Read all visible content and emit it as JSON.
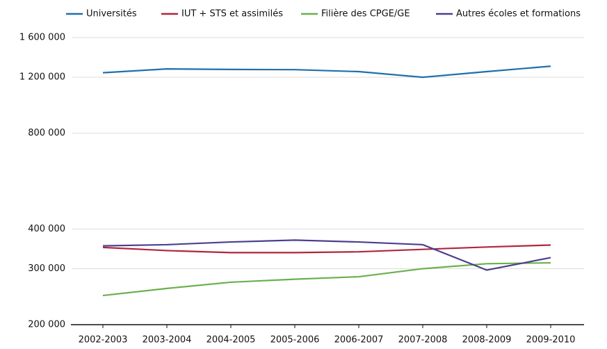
{
  "chart_data": {
    "type": "line",
    "categories": [
      "2002-2003",
      "2003-2004",
      "2004-2005",
      "2005-2006",
      "2006-2007",
      "2007-2008",
      "2008-2009",
      "2009-2010"
    ],
    "series": [
      {
        "name": "Universités",
        "color": "#1f6fad",
        "values": [
          1240000,
          1275000,
          1270000,
          1268000,
          1250000,
          1200000,
          1250000,
          1300000
        ]
      },
      {
        "name": "IUT + STS et assimilés",
        "color": "#b0263d",
        "values": [
          350000,
          342000,
          337000,
          337000,
          339000,
          345000,
          351000,
          356000
        ]
      },
      {
        "name": "Filière des CPGE/GE",
        "color": "#6ab04c",
        "values": [
          247000,
          260000,
          272000,
          278000,
          283000,
          300000,
          311000,
          313000
        ]
      },
      {
        "name": "Autres écoles et formations",
        "color": "#4b3f8f",
        "values": [
          354000,
          357000,
          364000,
          369000,
          364000,
          357000,
          297000,
          325000
        ]
      }
    ],
    "ylim": [
      200000,
      1600000
    ],
    "yticks": [
      {
        "value": 200000,
        "label": "200 000"
      },
      {
        "value": 300000,
        "label": "300 000"
      },
      {
        "value": 400000,
        "label": "400 000"
      },
      {
        "value": 800000,
        "label": "800 000"
      },
      {
        "value": 1200000,
        "label": "1 200 000"
      },
      {
        "value": 1600000,
        "label": "1 600 000"
      }
    ],
    "log_scale": true,
    "grid": true,
    "legend": "top"
  }
}
